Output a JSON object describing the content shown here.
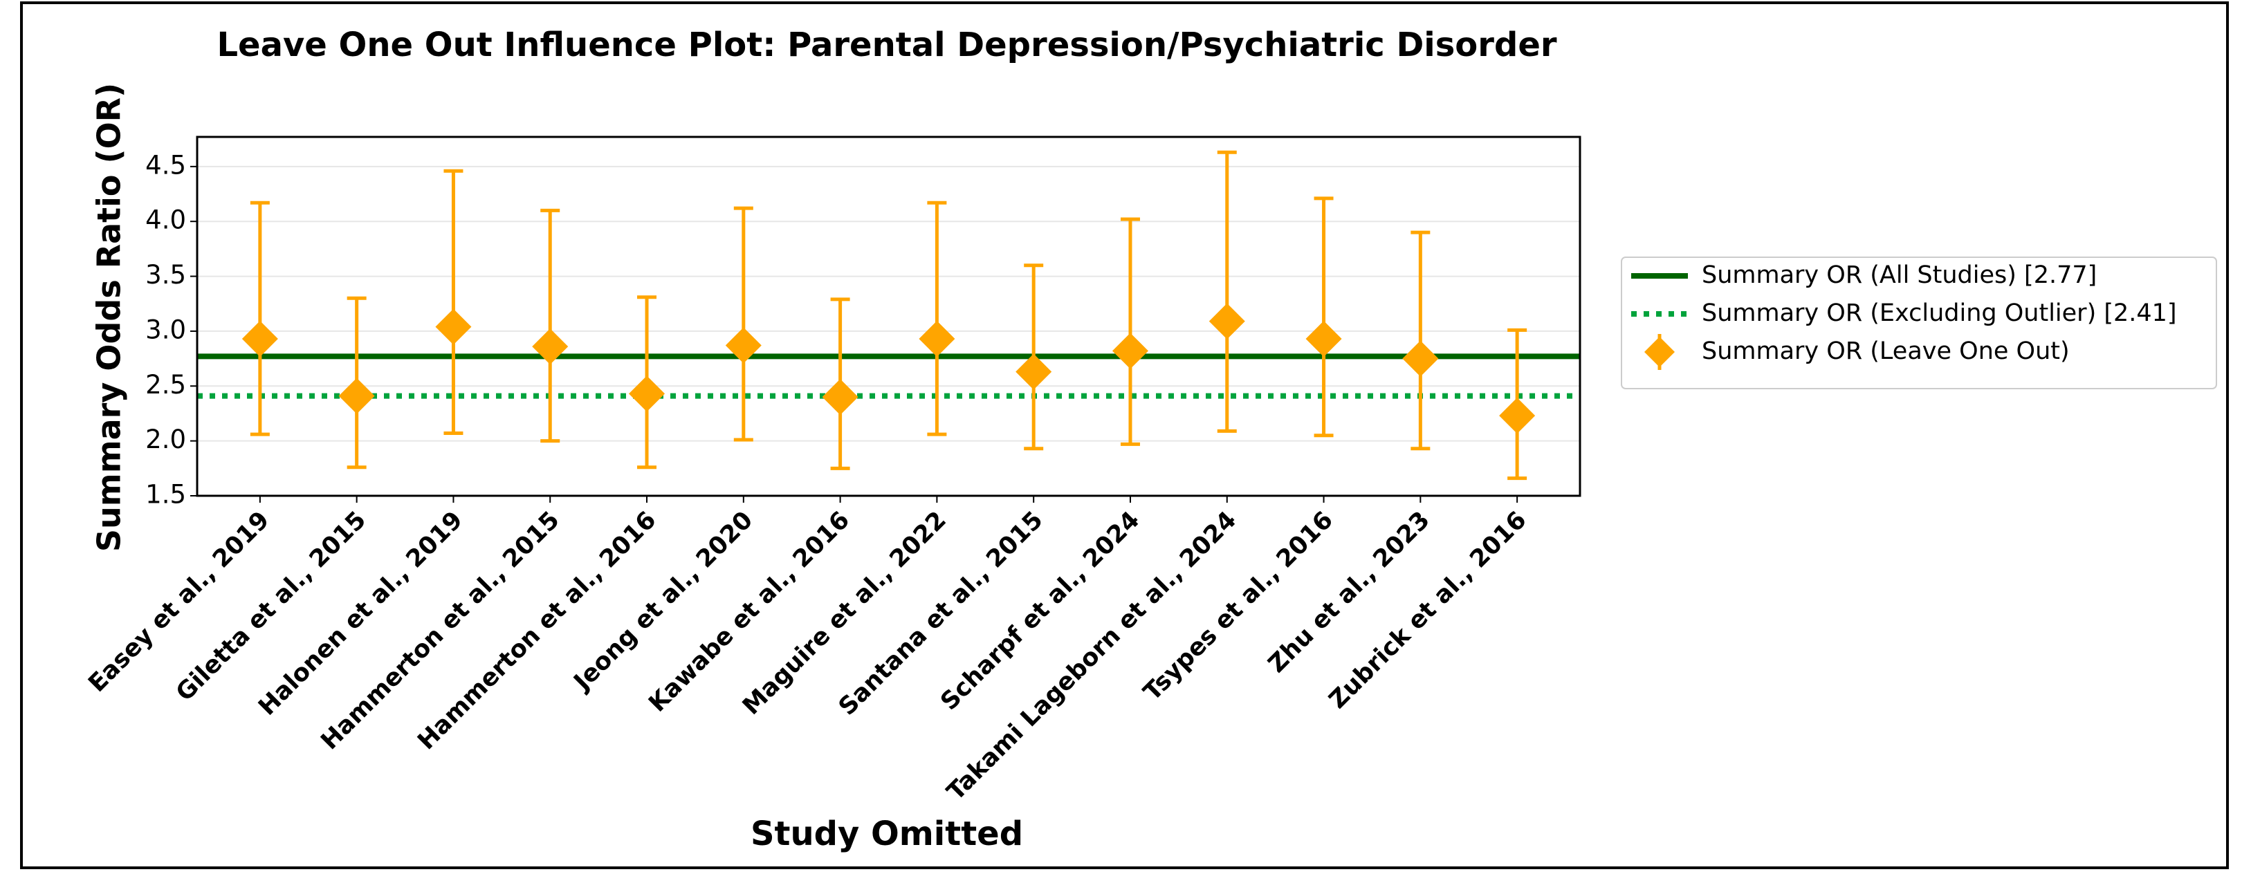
{
  "chart_data": {
    "type": "errorbar",
    "title": "Leave One Out Influence Plot: Parental Depression/Psychiatric Disorder",
    "xlabel": "Study Omitted",
    "ylabel": "Summary Odds Ratio (OR)",
    "categories": [
      "Easey et al., 2019",
      "Giletta et al., 2015",
      "Halonen et al., 2019",
      "Hammerton et al., 2015",
      "Hammerton et al., 2016",
      "Jeong et al., 2020",
      "Kawabe et al., 2016",
      "Maguire et al., 2022",
      "Santana et al., 2015",
      "Scharpf et al., 2024",
      "Takami Lageborn et al., 2024",
      "Tsypes et al., 2016",
      "Zhu et al., 2023",
      "Zubrick et al., 2016"
    ],
    "series": [
      {
        "name": "Summary OR (Leave One Out)",
        "color": "#ffa500",
        "values": [
          2.93,
          2.41,
          3.04,
          2.86,
          2.43,
          2.87,
          2.4,
          2.93,
          2.63,
          2.82,
          3.09,
          2.93,
          2.75,
          2.23
        ],
        "lower": [
          2.06,
          1.76,
          2.07,
          2.0,
          1.76,
          2.01,
          1.75,
          2.06,
          1.93,
          1.97,
          2.09,
          2.05,
          1.93,
          1.66
        ],
        "upper": [
          4.17,
          3.3,
          4.46,
          4.1,
          3.31,
          4.12,
          3.29,
          4.17,
          3.6,
          4.02,
          4.63,
          4.21,
          3.9,
          3.01
        ]
      }
    ],
    "reference_lines": [
      {
        "name": "Summary OR (All Studies) [2.77]",
        "value": 2.77,
        "color": "#006400",
        "style": "solid"
      },
      {
        "name": "Summary OR (Excluding Outlier) [2.41]",
        "value": 2.41,
        "color": "#00a33c",
        "style": "dotted"
      }
    ],
    "ylim": [
      1.5,
      4.77
    ],
    "yticks": [
      1.5,
      {
        "value": 2.0,
        "label": "2.0"
      },
      2.5,
      {
        "value": 3.0,
        "label": "3.0"
      },
      3.5,
      {
        "value": 4.0,
        "label": "4.0"
      },
      4.5
    ],
    "grid": true,
    "legend": "outside-right"
  }
}
